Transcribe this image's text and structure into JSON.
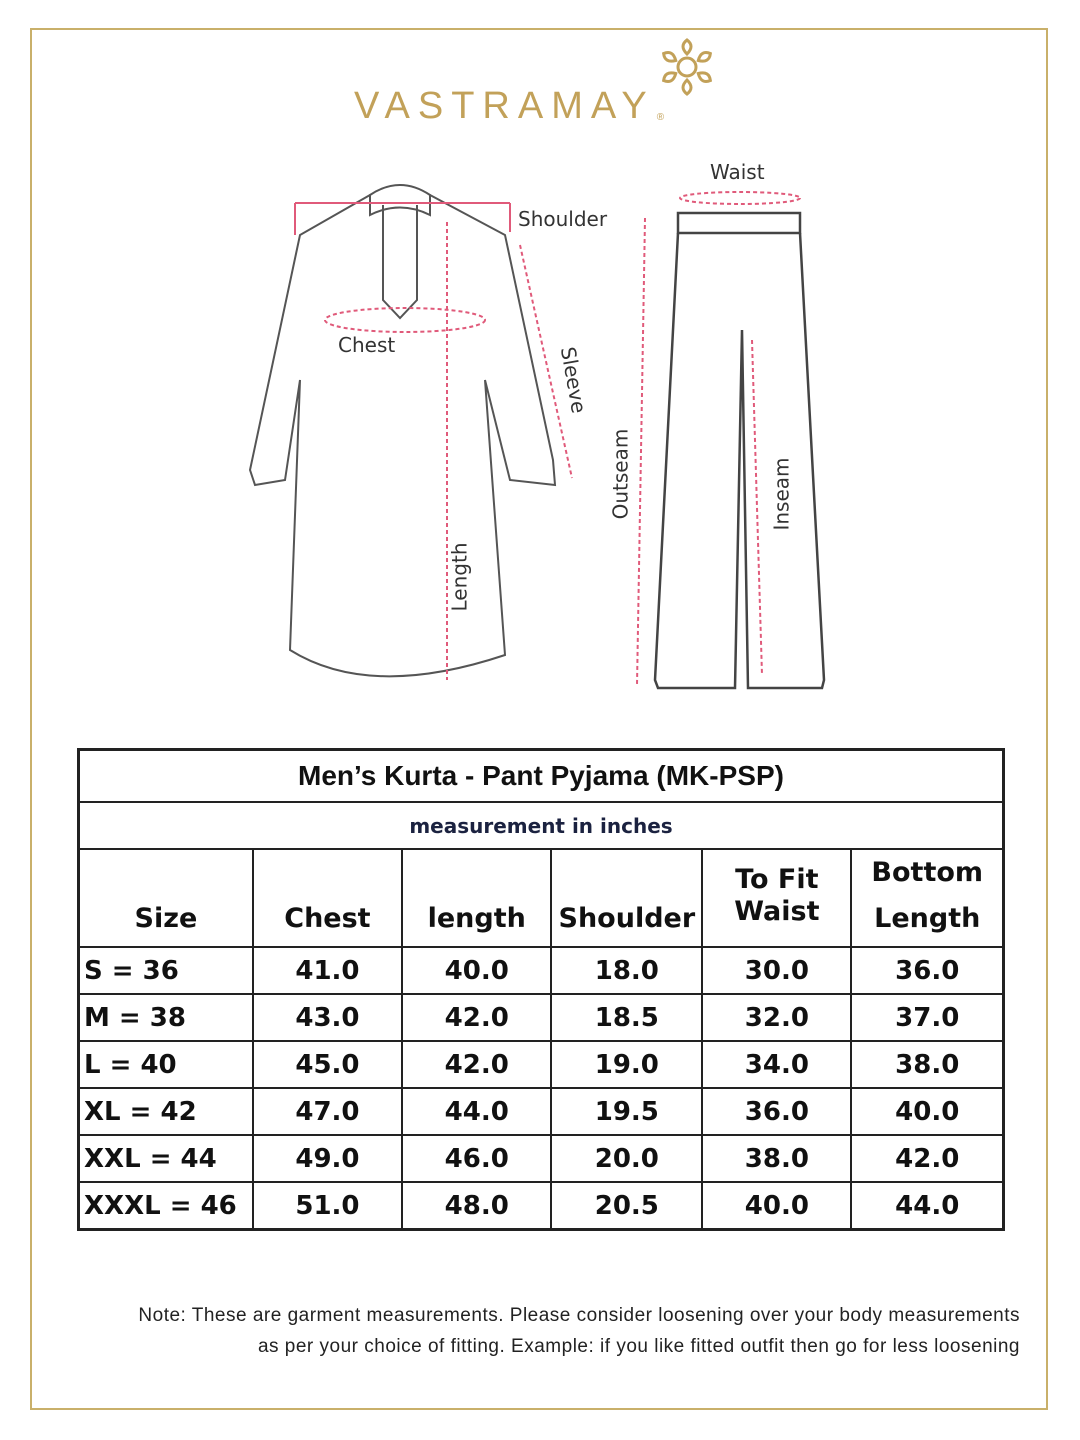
{
  "brand": {
    "name": "VASTRAMAY",
    "registered": "®",
    "color": "#c2a159"
  },
  "diagram": {
    "kurta_labels": {
      "shoulder": "Shoulder",
      "chest": "Chest",
      "sleeve": "Sleeve",
      "length": "Length"
    },
    "pant_labels": {
      "waist": "Waist",
      "outseam": "Outseam",
      "inseam": "Inseam"
    },
    "measure_color": "#e05a7a"
  },
  "table": {
    "title": "Men’s Kurta - Pant Pyjama (MK-PSP)",
    "subtitle": "measurement in inches",
    "headers": [
      "Size",
      "Chest",
      "length",
      "Shoulder",
      [
        "To Fit",
        "Waist"
      ],
      [
        "Bottom",
        "Length"
      ]
    ],
    "rows": [
      [
        "S = 36",
        "41.0",
        "40.0",
        "18.0",
        "30.0",
        "36.0"
      ],
      [
        "M = 38",
        "43.0",
        "42.0",
        "18.5",
        "32.0",
        "37.0"
      ],
      [
        "L = 40",
        "45.0",
        "42.0",
        "19.0",
        "34.0",
        "38.0"
      ],
      [
        "XL = 42",
        "47.0",
        "44.0",
        "19.5",
        "36.0",
        "40.0"
      ],
      [
        "XXL = 44",
        "49.0",
        "46.0",
        "20.0",
        "38.0",
        "42.0"
      ],
      [
        "XXXL = 46",
        "51.0",
        "48.0",
        "20.5",
        "40.0",
        "44.0"
      ]
    ]
  },
  "note": [
    "Note: These are garment measurements. Please consider loosening over your body measurements",
    "as per your choice of fitting. Example: if you like fitted outfit then go for less loosening"
  ]
}
